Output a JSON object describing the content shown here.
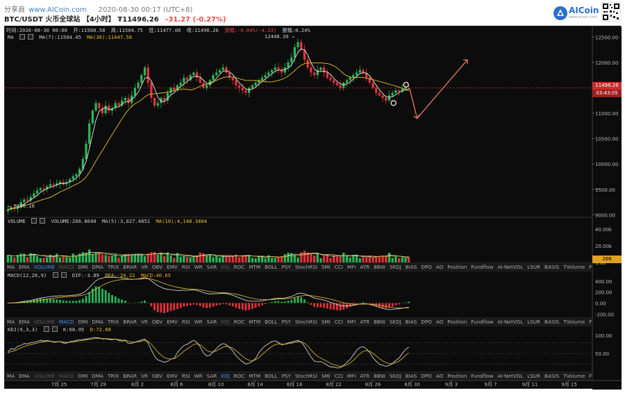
{
  "header": {
    "share_label": "分享自",
    "site": "www.AICoin.com",
    "timestamp": "2020-08-30 00:17 (UTC+8)",
    "pair": "BTC/USDT 火币全球站 【4小时】 ₮11496.26",
    "change": "-31.27 (-0.27%)",
    "logo_text": "AICoin",
    "logo_sub": "www.aicoin.com"
  },
  "info": {
    "time": "时间:2020-08-30 00:00",
    "open": "开:11500.58",
    "high": "高:11504.75",
    "low": "低:11477.00",
    "close": "收:11496.26",
    "change": "涨幅:-0.04%(-4.33)",
    "amplitude": "振幅:0.24%"
  },
  "ma": {
    "label": "MA",
    "ma7": "MA(7):11504.45",
    "ma30": "MA(30):11447.56",
    "high_label": "12448.39 →",
    "low_label": "← 9100.16"
  },
  "volume": {
    "label": "VOLUME",
    "value": "VOLUME:266.8640",
    "ma5": "MA(5):3,027.4851",
    "ma10": "MA(10):4,148.3404",
    "tag": "266"
  },
  "macd": {
    "label": "MACD(12,26,9)",
    "dif": "DIF:-3.89",
    "dea": "DEA:-24.22",
    "macd": "MACD:40.65"
  },
  "kdj": {
    "label": "KDJ(9,3,3)",
    "k": "K:68.95",
    "d": "D:72.68"
  },
  "price_tag": {
    "price": "11496.26",
    "countdown": "03:43:05"
  },
  "y_axis_main": [
    "12500.00",
    "12000.00",
    "11500.00",
    "11000.00",
    "10500.00",
    "10000.00",
    "9500.00",
    "9000.00"
  ],
  "y_axis_volume": [
    "40.00k",
    "20.00k",
    "0.00"
  ],
  "y_axis_macd": [
    "400.00",
    "200.00",
    "0.00",
    "-200.00"
  ],
  "y_axis_kdj": [
    "100.00",
    "50.00"
  ],
  "x_axis": [
    "7月 25",
    "7月 29",
    "8月 2",
    "8月 6",
    "8月 10",
    "8月 14",
    "8月 18",
    "8月 22",
    "8月 26",
    "8月 30",
    "9月 3",
    "9月 7",
    "9月 11",
    "9月 15"
  ],
  "indicator_tabs": [
    "MA",
    "EMA",
    "VOLUME",
    "MACD",
    "DMI",
    "DMA",
    "TRIX",
    "BRAR",
    "VR",
    "OBV",
    "EMV",
    "RSI",
    "WR",
    "SAR",
    "KDJ",
    "ROC",
    "MTM",
    "BOLL",
    "PSY",
    "StochRSI",
    "SMI",
    "CCI",
    "MFI",
    "ATR",
    "BBW",
    "SKDJ",
    "BIAS",
    "DPO",
    "AO",
    "Position",
    "Fundflow",
    "AI-NetVOL",
    "LSUR",
    "BASIS",
    "TVolume",
    "FTBS",
    "TTSI"
  ],
  "chart_data": {
    "type": "candlestick",
    "title": "BTC/USDT 4h",
    "price_range": [
      8950,
      12600
    ],
    "closes": [
      9100,
      9150,
      9120,
      9180,
      9250,
      9300,
      9280,
      9350,
      9420,
      9480,
      9520,
      9500,
      9560,
      9600,
      9580,
      9620,
      9650,
      9600,
      9640,
      9700,
      9760,
      9800,
      9900,
      10100,
      10400,
      10800,
      11050,
      11200,
      11100,
      11000,
      11150,
      11050,
      11100,
      11200,
      11150,
      11250,
      11300,
      11200,
      11350,
      11500,
      11600,
      11750,
      11900,
      11600,
      11300,
      11150,
      11200,
      11300,
      11250,
      11400,
      11500,
      11450,
      11550,
      11600,
      11700,
      11650,
      11750,
      11800,
      11700,
      11600,
      11500,
      11550,
      11650,
      11750,
      11800,
      11850,
      11900,
      11800,
      11700,
      11650,
      11550,
      11500,
      11450,
      11400,
      11500,
      11550,
      11600,
      11650,
      11700,
      11750,
      11800,
      11850,
      11900,
      11850,
      11800,
      11900,
      12000,
      12100,
      12300,
      12400,
      12250,
      12050,
      11900,
      11800,
      11750,
      11850,
      11900,
      11800,
      11700,
      11650,
      11600,
      11550,
      11500,
      11600,
      11650,
      11700,
      11750,
      11800,
      11850,
      11800,
      11700,
      11600,
      11500,
      11400,
      11350,
      11300,
      11250,
      11350,
      11400,
      11450,
      11420,
      11480,
      11500,
      11496
    ],
    "annotations": {
      "down_arrow_target": 10900,
      "up_arrow_target": 12050,
      "circle_low": 11200,
      "circle_high": 11560
    }
  }
}
